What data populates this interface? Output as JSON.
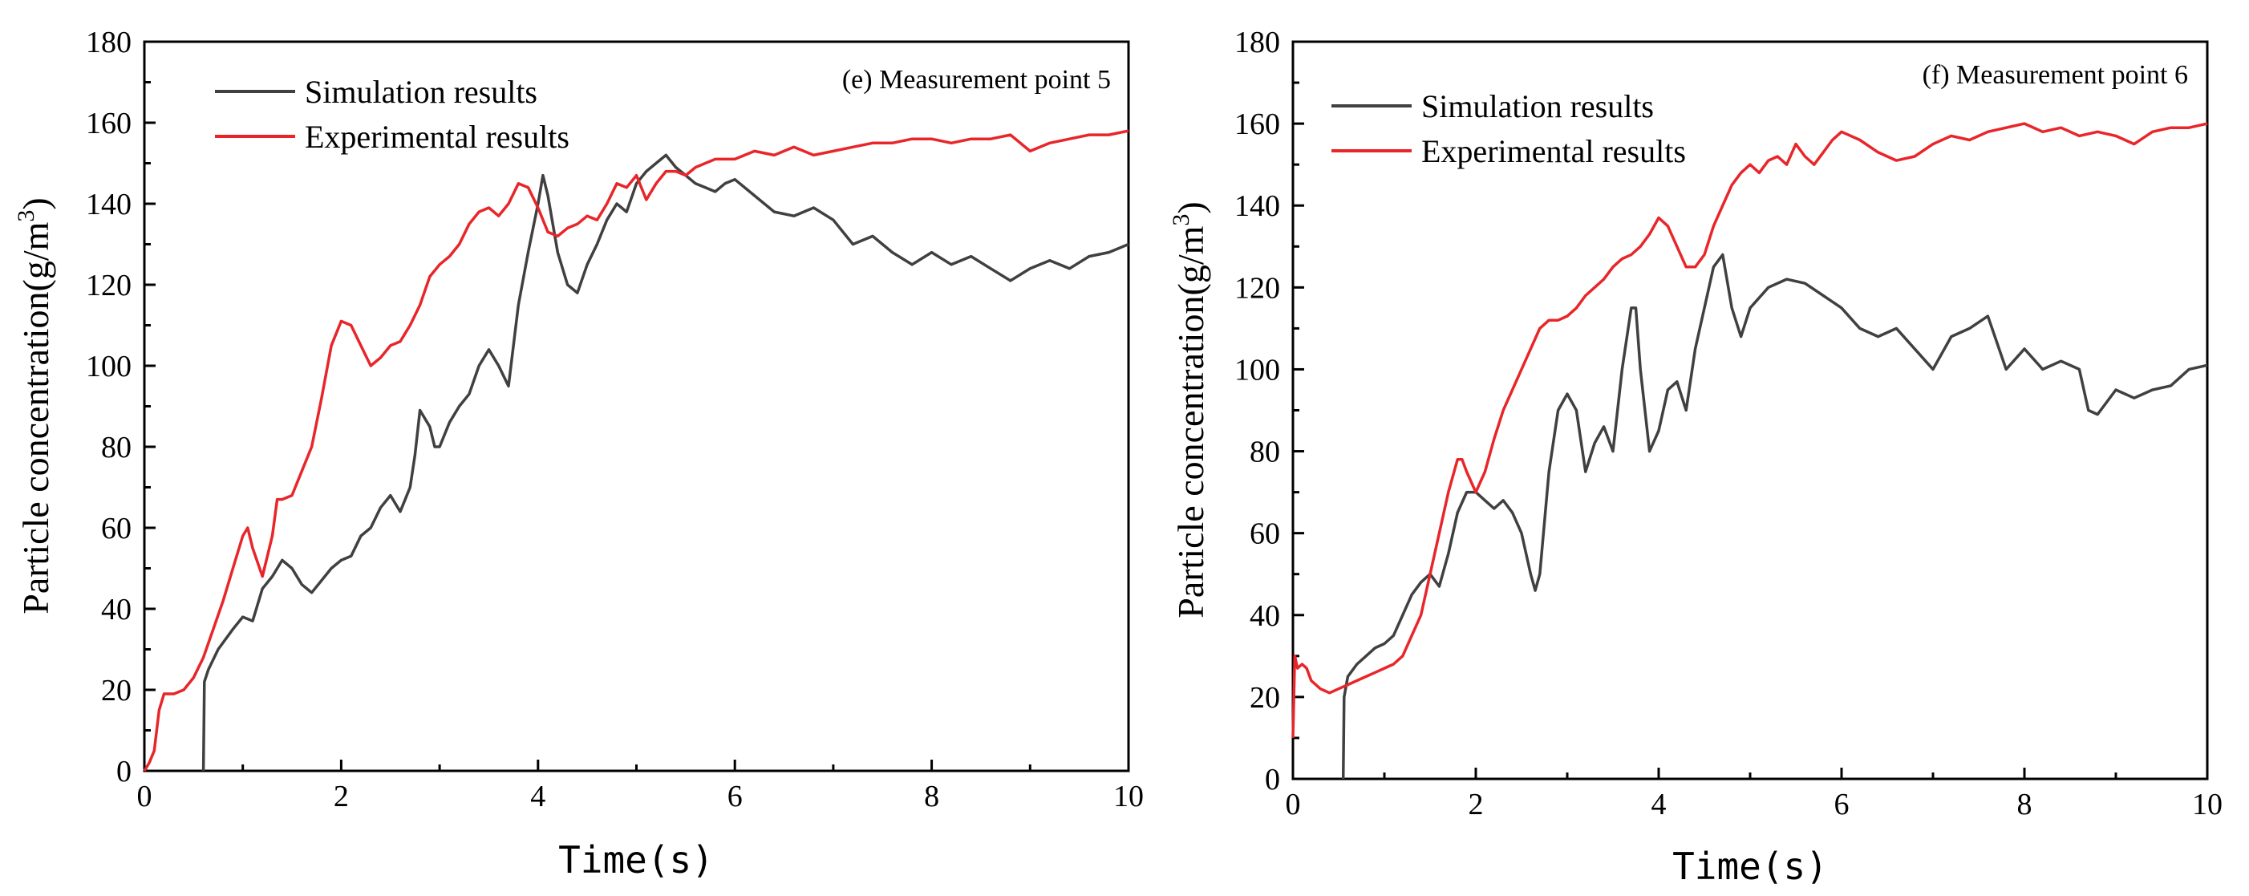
{
  "chart_data": [
    {
      "type": "line",
      "title": "(e) Measurement point 5",
      "xlabel": "Time(s)",
      "ylabel": "Particle concentration(g/m",
      "ylabel_sup": "3",
      "ylabel_end": ")",
      "xlim": [
        0,
        10
      ],
      "ylim": [
        0,
        180
      ],
      "xticks": [
        0,
        2,
        4,
        6,
        8,
        10
      ],
      "yticks": [
        0,
        20,
        40,
        60,
        80,
        100,
        120,
        140,
        160,
        180
      ],
      "legend_position": "top-left",
      "grid": false,
      "series": [
        {
          "name": "Simulation results",
          "color": "#404040",
          "x": [
            0.6,
            0.61,
            0.65,
            0.75,
            0.9,
            1.0,
            1.1,
            1.2,
            1.3,
            1.4,
            1.5,
            1.6,
            1.7,
            1.8,
            1.9,
            2.0,
            2.1,
            2.2,
            2.3,
            2.4,
            2.5,
            2.6,
            2.7,
            2.75,
            2.8,
            2.9,
            2.95,
            3.0,
            3.1,
            3.2,
            3.3,
            3.4,
            3.5,
            3.6,
            3.7,
            3.8,
            3.9,
            4.0,
            4.05,
            4.1,
            4.2,
            4.3,
            4.4,
            4.5,
            4.6,
            4.7,
            4.8,
            4.9,
            5.0,
            5.1,
            5.2,
            5.3,
            5.4,
            5.5,
            5.6,
            5.7,
            5.8,
            5.9,
            6.0,
            6.2,
            6.4,
            6.6,
            6.8,
            7.0,
            7.2,
            7.4,
            7.6,
            7.8,
            8.0,
            8.2,
            8.4,
            8.6,
            8.8,
            9.0,
            9.2,
            9.4,
            9.6,
            9.8,
            10.0
          ],
          "y": [
            0,
            22,
            25,
            30,
            35,
            38,
            37,
            45,
            48,
            52,
            50,
            46,
            44,
            47,
            50,
            52,
            53,
            58,
            60,
            65,
            68,
            64,
            70,
            78,
            89,
            85,
            80,
            80,
            86,
            90,
            93,
            100,
            104,
            100,
            95,
            115,
            128,
            140,
            147,
            142,
            128,
            120,
            118,
            125,
            130,
            136,
            140,
            138,
            145,
            148,
            150,
            152,
            149,
            147,
            145,
            144,
            143,
            145,
            146,
            142,
            138,
            137,
            139,
            136,
            130,
            132,
            128,
            125,
            128,
            125,
            127,
            124,
            121,
            124,
            126,
            124,
            127,
            128,
            130
          ]
        },
        {
          "name": "Experimental results",
          "color": "#e8262a",
          "x": [
            0.0,
            0.05,
            0.1,
            0.15,
            0.2,
            0.3,
            0.4,
            0.5,
            0.6,
            0.7,
            0.8,
            0.9,
            1.0,
            1.05,
            1.1,
            1.2,
            1.3,
            1.35,
            1.4,
            1.5,
            1.6,
            1.7,
            1.8,
            1.9,
            2.0,
            2.1,
            2.2,
            2.3,
            2.4,
            2.5,
            2.6,
            2.7,
            2.8,
            2.9,
            3.0,
            3.1,
            3.2,
            3.3,
            3.4,
            3.5,
            3.6,
            3.7,
            3.8,
            3.9,
            4.0,
            4.1,
            4.2,
            4.3,
            4.4,
            4.5,
            4.6,
            4.7,
            4.8,
            4.9,
            5.0,
            5.1,
            5.2,
            5.3,
            5.4,
            5.5,
            5.6,
            5.7,
            5.8,
            6.0,
            6.2,
            6.4,
            6.6,
            6.8,
            7.0,
            7.2,
            7.4,
            7.6,
            7.8,
            8.0,
            8.2,
            8.4,
            8.6,
            8.8,
            9.0,
            9.2,
            9.4,
            9.6,
            9.8,
            10.0
          ],
          "y": [
            0,
            2,
            5,
            15,
            19,
            19,
            20,
            23,
            28,
            35,
            42,
            50,
            58,
            60,
            55,
            48,
            58,
            67,
            67,
            68,
            74,
            80,
            92,
            105,
            111,
            110,
            105,
            100,
            102,
            105,
            106,
            110,
            115,
            122,
            125,
            127,
            130,
            135,
            138,
            139,
            137,
            140,
            145,
            144,
            139,
            133,
            132,
            134,
            135,
            137,
            136,
            140,
            145,
            144,
            147,
            141,
            145,
            148,
            148,
            147,
            149,
            150,
            151,
            151,
            153,
            152,
            154,
            152,
            153,
            154,
            155,
            155,
            156,
            156,
            155,
            156,
            156,
            157,
            153,
            155,
            156,
            157,
            157,
            158
          ]
        }
      ]
    },
    {
      "type": "line",
      "title": "(f) Measurement point 6",
      "xlabel": "Time(s)",
      "ylabel": "Particle concentration(g/m",
      "ylabel_sup": "3",
      "ylabel_end": ")",
      "xlim": [
        0,
        10
      ],
      "ylim": [
        0,
        180
      ],
      "xticks": [
        0,
        2,
        4,
        6,
        8,
        10
      ],
      "yticks": [
        0,
        20,
        40,
        60,
        80,
        100,
        120,
        140,
        160,
        180
      ],
      "legend_position": "top-left",
      "grid": false,
      "series": [
        {
          "name": "Simulation results",
          "color": "#404040",
          "x": [
            0.55,
            0.56,
            0.6,
            0.7,
            0.8,
            0.9,
            1.0,
            1.1,
            1.2,
            1.3,
            1.4,
            1.5,
            1.6,
            1.7,
            1.8,
            1.9,
            2.0,
            2.1,
            2.2,
            2.3,
            2.4,
            2.5,
            2.6,
            2.65,
            2.7,
            2.8,
            2.9,
            3.0,
            3.1,
            3.2,
            3.3,
            3.4,
            3.5,
            3.6,
            3.7,
            3.75,
            3.8,
            3.9,
            4.0,
            4.1,
            4.2,
            4.3,
            4.4,
            4.5,
            4.6,
            4.7,
            4.8,
            4.9,
            5.0,
            5.2,
            5.4,
            5.6,
            5.8,
            6.0,
            6.2,
            6.4,
            6.6,
            6.8,
            7.0,
            7.2,
            7.4,
            7.6,
            7.8,
            8.0,
            8.2,
            8.4,
            8.6,
            8.7,
            8.8,
            9.0,
            9.2,
            9.4,
            9.6,
            9.8,
            10.0
          ],
          "y": [
            0,
            20,
            25,
            28,
            30,
            32,
            33,
            35,
            40,
            45,
            48,
            50,
            47,
            55,
            65,
            70,
            70,
            68,
            66,
            68,
            65,
            60,
            50,
            46,
            50,
            75,
            90,
            94,
            90,
            75,
            82,
            86,
            80,
            100,
            115,
            115,
            100,
            80,
            85,
            95,
            97,
            90,
            105,
            115,
            125,
            128,
            115,
            108,
            115,
            120,
            122,
            121,
            118,
            115,
            110,
            108,
            110,
            105,
            100,
            108,
            110,
            113,
            100,
            105,
            100,
            102,
            100,
            90,
            89,
            95,
            93,
            95,
            96,
            100,
            101
          ]
        },
        {
          "name": "Experimental results",
          "color": "#e8262a",
          "x": [
            0.0,
            0.02,
            0.05,
            0.1,
            0.15,
            0.2,
            0.3,
            0.4,
            0.5,
            0.6,
            0.7,
            0.8,
            0.9,
            1.0,
            1.1,
            1.2,
            1.3,
            1.4,
            1.5,
            1.6,
            1.7,
            1.8,
            1.85,
            1.9,
            2.0,
            2.1,
            2.2,
            2.3,
            2.4,
            2.5,
            2.6,
            2.7,
            2.8,
            2.9,
            3.0,
            3.1,
            3.2,
            3.3,
            3.4,
            3.5,
            3.6,
            3.7,
            3.8,
            3.9,
            4.0,
            4.1,
            4.2,
            4.3,
            4.4,
            4.5,
            4.6,
            4.7,
            4.8,
            4.9,
            5.0,
            5.1,
            5.2,
            5.3,
            5.4,
            5.5,
            5.6,
            5.7,
            5.8,
            5.9,
            6.0,
            6.2,
            6.4,
            6.6,
            6.8,
            7.0,
            7.2,
            7.4,
            7.6,
            7.8,
            8.0,
            8.2,
            8.4,
            8.6,
            8.8,
            9.0,
            9.2,
            9.4,
            9.6,
            9.8,
            10.0
          ],
          "y": [
            10,
            30,
            27,
            28,
            27,
            24,
            22,
            21,
            22,
            23,
            24,
            25,
            26,
            27,
            28,
            30,
            35,
            40,
            50,
            60,
            70,
            78,
            78,
            75,
            70,
            75,
            83,
            90,
            95,
            100,
            105,
            110,
            112,
            112,
            113,
            115,
            118,
            120,
            122,
            125,
            127,
            128,
            130,
            133,
            137,
            135,
            130,
            125,
            125,
            128,
            135,
            140,
            145,
            148,
            150,
            148,
            151,
            152,
            150,
            155,
            152,
            150,
            153,
            156,
            158,
            156,
            153,
            151,
            152,
            155,
            157,
            156,
            158,
            159,
            160,
            158,
            159,
            157,
            158,
            157,
            155,
            158,
            159,
            159,
            160
          ]
        }
      ]
    }
  ]
}
